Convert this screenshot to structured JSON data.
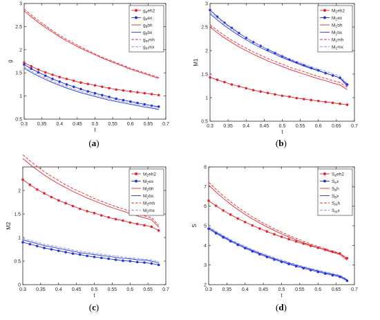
{
  "figure": {
    "captions": [
      "a",
      "b",
      "c",
      "d"
    ]
  },
  "colors": {
    "red": "#e8232a",
    "blue": "#2233dd",
    "light_red": "#f08c8c",
    "light_blue": "#8c95f0"
  },
  "chart_data": [
    {
      "panel": "a",
      "type": "line",
      "title": "",
      "xlabel": "t",
      "ylabel": "g",
      "xlim": [
        0.3,
        0.7
      ],
      "ylim": [
        0.5,
        3.0
      ],
      "xticks": [
        "0.3",
        "0.35",
        "0.4",
        "0.45",
        "0.5",
        "0.55",
        "0.6",
        "0.65",
        "0.7"
      ],
      "yticks": [
        "0.5",
        "1",
        "1.5",
        "2",
        "2.5",
        "3"
      ],
      "grid": false,
      "legend_position": "top-right",
      "x": [
        0.3,
        0.32,
        0.34,
        0.36,
        0.38,
        0.4,
        0.42,
        0.44,
        0.46,
        0.48,
        0.5,
        0.52,
        0.54,
        0.56,
        0.58,
        0.6,
        0.62,
        0.64,
        0.66,
        0.68
      ],
      "series": [
        {
          "legend": [
            "g",
            "e",
            "eh2"
          ],
          "color": "#e8232a",
          "style": "solid-marker",
          "values": [
            1.72,
            1.64,
            1.57,
            1.51,
            1.46,
            1.41,
            1.37,
            1.33,
            1.29,
            1.26,
            1.23,
            1.2,
            1.17,
            1.14,
            1.12,
            1.1,
            1.08,
            1.06,
            1.04,
            1.02
          ]
        },
        {
          "legend": [
            "g",
            "e",
            "ex"
          ],
          "color": "#2233dd",
          "style": "solid-marker",
          "values": [
            1.68,
            1.59,
            1.51,
            1.44,
            1.37,
            1.31,
            1.25,
            1.2,
            1.15,
            1.1,
            1.06,
            1.02,
            0.98,
            0.94,
            0.91,
            0.88,
            0.85,
            0.82,
            0.79,
            0.77
          ]
        },
        {
          "legend": [
            "g",
            "b",
            "bh"
          ],
          "color": "#e8232a",
          "style": "solid",
          "values": [
            2.84,
            2.71,
            2.59,
            2.48,
            2.38,
            2.28,
            2.19,
            2.11,
            2.03,
            1.96,
            1.89,
            1.82,
            1.76,
            1.7,
            1.64,
            1.58,
            1.53,
            1.48,
            1.43,
            1.38
          ]
        },
        {
          "legend": [
            "g",
            "b",
            "bx"
          ],
          "color": "#2233dd",
          "style": "solid",
          "values": [
            1.6,
            1.51,
            1.43,
            1.36,
            1.29,
            1.23,
            1.17,
            1.12,
            1.07,
            1.03,
            0.99,
            0.95,
            0.91,
            0.88,
            0.85,
            0.82,
            0.79,
            0.76,
            0.74,
            0.71
          ]
        },
        {
          "legend": [
            "g",
            "m",
            "mh"
          ],
          "color": "#e8232a",
          "style": "dashed",
          "values": [
            2.88,
            2.75,
            2.63,
            2.52,
            2.41,
            2.31,
            2.22,
            2.14,
            2.06,
            1.98,
            1.91,
            1.84,
            1.78,
            1.72,
            1.66,
            1.6,
            1.55,
            1.5,
            1.45,
            1.4
          ]
        },
        {
          "legend": [
            "g",
            "m",
            "mx"
          ],
          "color": "#8c95f0",
          "style": "dashed",
          "values": [
            1.63,
            1.54,
            1.46,
            1.39,
            1.32,
            1.26,
            1.2,
            1.15,
            1.1,
            1.06,
            1.02,
            0.98,
            0.94,
            0.91,
            0.88,
            0.85,
            0.82,
            0.79,
            0.77,
            0.74
          ]
        }
      ]
    },
    {
      "panel": "b",
      "type": "line",
      "title": "",
      "xlabel": "t",
      "ylabel": "M1",
      "xlim": [
        0.3,
        0.7
      ],
      "ylim": [
        0.5,
        3.0
      ],
      "xticks": [
        "0.3",
        "0.35",
        "0.4",
        "0.45",
        "0.5",
        "0.55",
        "0.6",
        "0.65",
        "0.7"
      ],
      "yticks": [
        "0.5",
        "1",
        "1.5",
        "2",
        "2.5",
        "3"
      ],
      "grid": false,
      "legend_position": "top-right",
      "x": [
        0.3,
        0.32,
        0.34,
        0.36,
        0.38,
        0.4,
        0.42,
        0.44,
        0.46,
        0.48,
        0.5,
        0.52,
        0.54,
        0.56,
        0.58,
        0.6,
        0.62,
        0.64,
        0.66,
        0.68
      ],
      "series": [
        {
          "legend": [
            "M",
            "1",
            "eh2"
          ],
          "color": "#e8232a",
          "style": "solid-marker",
          "values": [
            1.43,
            1.38,
            1.33,
            1.28,
            1.24,
            1.2,
            1.16,
            1.13,
            1.1,
            1.07,
            1.04,
            1.02,
            0.99,
            0.97,
            0.95,
            0.93,
            0.91,
            0.89,
            0.87,
            0.85
          ]
        },
        {
          "legend": [
            "M",
            "1",
            "ex"
          ],
          "color": "#2233dd",
          "style": "solid-marker",
          "values": [
            2.86,
            2.72,
            2.59,
            2.48,
            2.37,
            2.27,
            2.18,
            2.1,
            2.02,
            1.95,
            1.88,
            1.81,
            1.75,
            1.69,
            1.63,
            1.58,
            1.52,
            1.47,
            1.42,
            1.28
          ]
        },
        {
          "legend": [
            "M",
            "1",
            "bh"
          ],
          "color": "#e8232a",
          "style": "solid",
          "values": [
            2.5,
            2.38,
            2.27,
            2.17,
            2.08,
            2.0,
            1.92,
            1.85,
            1.78,
            1.72,
            1.66,
            1.6,
            1.55,
            1.5,
            1.45,
            1.4,
            1.36,
            1.31,
            1.27,
            1.17
          ]
        },
        {
          "legend": [
            "M",
            "1",
            "bx"
          ],
          "color": "#2233dd",
          "style": "solid",
          "values": [
            2.78,
            2.65,
            2.53,
            2.42,
            2.32,
            2.23,
            2.14,
            2.06,
            1.99,
            1.92,
            1.85,
            1.79,
            1.73,
            1.67,
            1.62,
            1.57,
            1.52,
            1.47,
            1.42,
            1.24
          ]
        },
        {
          "legend": [
            "M",
            "1",
            "mh"
          ],
          "color": "#e8232a",
          "style": "dashed",
          "values": [
            2.55,
            2.43,
            2.32,
            2.22,
            2.13,
            2.05,
            1.97,
            1.9,
            1.83,
            1.77,
            1.71,
            1.65,
            1.6,
            1.55,
            1.5,
            1.45,
            1.41,
            1.36,
            1.32,
            1.22
          ]
        },
        {
          "legend": [
            "M",
            "1",
            "mx"
          ],
          "color": "#8c95f0",
          "style": "dashed",
          "values": [
            2.82,
            2.69,
            2.57,
            2.46,
            2.36,
            2.27,
            2.18,
            2.1,
            2.03,
            1.96,
            1.89,
            1.83,
            1.77,
            1.71,
            1.66,
            1.61,
            1.56,
            1.51,
            1.46,
            1.3
          ]
        }
      ]
    },
    {
      "panel": "c",
      "type": "line",
      "title": "",
      "xlabel": "t",
      "ylabel": "M2",
      "xlim": [
        0.3,
        0.7
      ],
      "ylim": [
        0.0,
        2.5
      ],
      "xticks": [
        "0.3",
        "0.35",
        "0.4",
        "0.45",
        "0.5",
        "0.55",
        "0.6",
        "0.65",
        "0.7"
      ],
      "yticks": [
        "0",
        "0.5",
        "1",
        "1.5",
        "2"
      ],
      "grid": false,
      "legend_position": "top-right",
      "x": [
        0.3,
        0.32,
        0.34,
        0.36,
        0.38,
        0.4,
        0.42,
        0.44,
        0.46,
        0.48,
        0.5,
        0.52,
        0.54,
        0.56,
        0.58,
        0.6,
        0.62,
        0.64,
        0.66,
        0.68
      ],
      "series": [
        {
          "legend": [
            "M",
            "2",
            "eh2"
          ],
          "color": "#e8232a",
          "style": "solid-marker",
          "values": [
            2.23,
            2.12,
            2.02,
            1.94,
            1.86,
            1.79,
            1.73,
            1.67,
            1.61,
            1.56,
            1.52,
            1.47,
            1.43,
            1.39,
            1.36,
            1.32,
            1.29,
            1.26,
            1.23,
            1.15
          ]
        },
        {
          "legend": [
            "M",
            "2",
            "ex"
          ],
          "color": "#2233dd",
          "style": "solid-marker",
          "values": [
            0.9,
            0.86,
            0.82,
            0.78,
            0.75,
            0.72,
            0.69,
            0.66,
            0.64,
            0.61,
            0.59,
            0.57,
            0.55,
            0.53,
            0.51,
            0.5,
            0.48,
            0.47,
            0.45,
            0.42
          ]
        },
        {
          "legend": [
            "M",
            "2",
            "bh"
          ],
          "color": "#e8232a",
          "style": "solid",
          "values": [
            2.68,
            2.55,
            2.44,
            2.33,
            2.23,
            2.14,
            2.06,
            1.98,
            1.91,
            1.84,
            1.78,
            1.72,
            1.66,
            1.61,
            1.56,
            1.51,
            1.46,
            1.42,
            1.38,
            1.22
          ]
        },
        {
          "legend": [
            "M",
            "2",
            "bx"
          ],
          "color": "#2233dd",
          "style": "solid",
          "values": [
            0.95,
            0.91,
            0.87,
            0.83,
            0.8,
            0.77,
            0.74,
            0.71,
            0.68,
            0.66,
            0.64,
            0.62,
            0.6,
            0.58,
            0.56,
            0.55,
            0.53,
            0.52,
            0.5,
            0.46
          ]
        },
        {
          "legend": [
            "M",
            "2",
            "mh"
          ],
          "color": "#e8232a",
          "style": "dashed",
          "values": [
            2.76,
            2.63,
            2.51,
            2.4,
            2.3,
            2.21,
            2.12,
            2.04,
            1.97,
            1.9,
            1.83,
            1.77,
            1.71,
            1.66,
            1.61,
            1.56,
            1.51,
            1.46,
            1.42,
            1.26
          ]
        },
        {
          "legend": [
            "M",
            "2",
            "mx"
          ],
          "color": "#8c95f0",
          "style": "dashed",
          "values": [
            0.98,
            0.94,
            0.9,
            0.86,
            0.83,
            0.8,
            0.77,
            0.74,
            0.71,
            0.69,
            0.67,
            0.65,
            0.63,
            0.61,
            0.59,
            0.57,
            0.56,
            0.54,
            0.53,
            0.49
          ]
        }
      ]
    },
    {
      "panel": "d",
      "type": "line",
      "title": "",
      "xlabel": "t",
      "ylabel": "S",
      "xlim": [
        0.3,
        0.7
      ],
      "ylim": [
        2.0,
        8.0
      ],
      "xticks": [
        "0.3",
        "0.35",
        "0.4",
        "0.45",
        "0.5",
        "0.55",
        "0.6",
        "0.65",
        "0.7"
      ],
      "yticks": [
        "2",
        "3",
        "4",
        "5",
        "6",
        "7",
        "8"
      ],
      "grid": false,
      "legend_position": "top-right",
      "x": [
        0.3,
        0.32,
        0.34,
        0.36,
        0.38,
        0.4,
        0.42,
        0.44,
        0.46,
        0.48,
        0.5,
        0.52,
        0.54,
        0.56,
        0.58,
        0.6,
        0.62,
        0.64,
        0.66,
        0.68
      ],
      "series": [
        {
          "legend": [
            "S",
            "e",
            "eh2"
          ],
          "color": "#e8232a",
          "style": "solid-marker",
          "values": [
            6.28,
            6.02,
            5.78,
            5.57,
            5.37,
            5.19,
            5.02,
            4.86,
            4.71,
            4.57,
            4.44,
            4.32,
            4.2,
            4.09,
            3.98,
            3.88,
            3.78,
            3.68,
            3.59,
            3.35
          ]
        },
        {
          "legend": [
            "S",
            "e",
            "x"
          ],
          "color": "#2233dd",
          "style": "solid-marker",
          "values": [
            4.85,
            4.62,
            4.41,
            4.21,
            4.03,
            3.86,
            3.7,
            3.55,
            3.41,
            3.28,
            3.16,
            3.05,
            2.94,
            2.84,
            2.74,
            2.65,
            2.56,
            2.48,
            2.4,
            2.2
          ]
        },
        {
          "legend": [
            "S",
            "b",
            "h"
          ],
          "color": "#e8232a",
          "style": "solid",
          "values": [
            7.08,
            6.72,
            6.4,
            6.1,
            5.83,
            5.58,
            5.35,
            5.14,
            4.94,
            4.76,
            4.59,
            4.43,
            4.28,
            4.14,
            4.01,
            3.88,
            3.76,
            3.65,
            3.54,
            3.25
          ]
        },
        {
          "legend": [
            "S",
            "b",
            "x"
          ],
          "color": "#2233dd",
          "style": "solid",
          "values": [
            4.9,
            4.67,
            4.46,
            4.26,
            4.08,
            3.91,
            3.75,
            3.6,
            3.46,
            3.33,
            3.21,
            3.1,
            2.99,
            2.89,
            2.79,
            2.7,
            2.61,
            2.53,
            2.45,
            2.24
          ]
        },
        {
          "legend": [
            "S",
            "m",
            "h"
          ],
          "color": "#e8232a",
          "style": "dashed",
          "values": [
            7.22,
            6.86,
            6.53,
            6.23,
            5.95,
            5.7,
            5.46,
            5.24,
            5.04,
            4.85,
            4.68,
            4.51,
            4.36,
            4.22,
            4.08,
            3.95,
            3.83,
            3.71,
            3.6,
            3.3
          ]
        },
        {
          "legend": [
            "S",
            "m",
            "x"
          ],
          "color": "#8c95f0",
          "style": "dashed",
          "values": [
            4.95,
            4.72,
            4.51,
            4.31,
            4.13,
            3.96,
            3.8,
            3.65,
            3.51,
            3.38,
            3.26,
            3.14,
            3.03,
            2.93,
            2.83,
            2.74,
            2.65,
            2.57,
            2.49,
            2.28
          ]
        }
      ]
    }
  ]
}
